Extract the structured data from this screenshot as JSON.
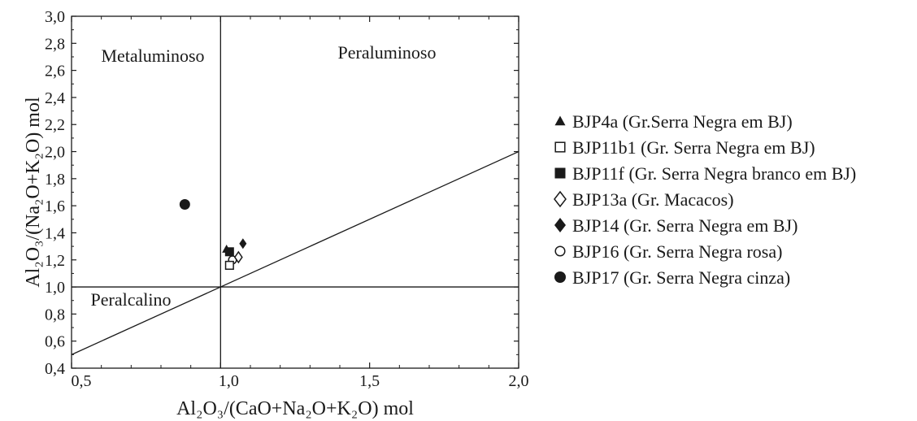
{
  "chart_data": {
    "type": "scatter",
    "xlabel": "Al₂O₃/(CaO+Na₂O+K₂O) mol",
    "ylabel": "Al₂O₃/(Na₂O+K₂O) mol",
    "xlim": [
      0.5,
      2.0
    ],
    "ylim": [
      0.4,
      3.0
    ],
    "x_ticks": [
      "0,5",
      "1,0",
      "1,5",
      "2,0"
    ],
    "x_tick_values": [
      0.5,
      1.0,
      1.5,
      2.0
    ],
    "y_ticks": [
      "0,4",
      "0,6",
      "0,8",
      "1,0",
      "1,2",
      "1,4",
      "1,6",
      "1,8",
      "2,0",
      "2,2",
      "2,4",
      "2,6",
      "2,8",
      "3,0"
    ],
    "y_tick_values": [
      0.4,
      0.6,
      0.8,
      1.0,
      1.2,
      1.4,
      1.6,
      1.8,
      2.0,
      2.2,
      2.4,
      2.6,
      2.8,
      3.0
    ],
    "grid": false,
    "region_labels": [
      "Metaluminoso",
      "Peraluminoso",
      "Peralcalino"
    ],
    "reference_lines": [
      {
        "type": "vertical",
        "x": 1.0
      },
      {
        "type": "horizontal",
        "y": 1.0
      },
      {
        "type": "diagonal",
        "points": [
          [
            0.5,
            0.5
          ],
          [
            2.0,
            2.0
          ]
        ]
      }
    ],
    "legend_position": "right",
    "series": [
      {
        "name": "BJP4a (Gr.Serra Negra em BJ)",
        "marker": "triangle-filled",
        "points": [
          [
            1.02,
            1.28
          ]
        ]
      },
      {
        "name": "BJP11b1 (Gr. Serra Negra em BJ)",
        "marker": "square-open",
        "points": [
          [
            1.03,
            1.16
          ]
        ]
      },
      {
        "name": "BJP11f (Gr. Serra Negra branco em BJ)",
        "marker": "square-filled",
        "points": [
          [
            1.03,
            1.26
          ]
        ]
      },
      {
        "name": "BJP13a (Gr. Macacos)",
        "marker": "diamond-open",
        "points": [
          [
            1.06,
            1.22
          ]
        ]
      },
      {
        "name": "BJP14 (Gr. Serra Negra em BJ)",
        "marker": "diamond-filled",
        "points": [
          [
            1.075,
            1.32
          ]
        ]
      },
      {
        "name": "BJP16 (Gr. Serra Negra rosa)",
        "marker": "circle-open",
        "points": [
          [
            1.04,
            1.2
          ]
        ]
      },
      {
        "name": "BJP17 (Gr. Serra Negra cinza)",
        "marker": "circle-filled",
        "points": [
          [
            0.88,
            1.61
          ]
        ]
      }
    ]
  }
}
